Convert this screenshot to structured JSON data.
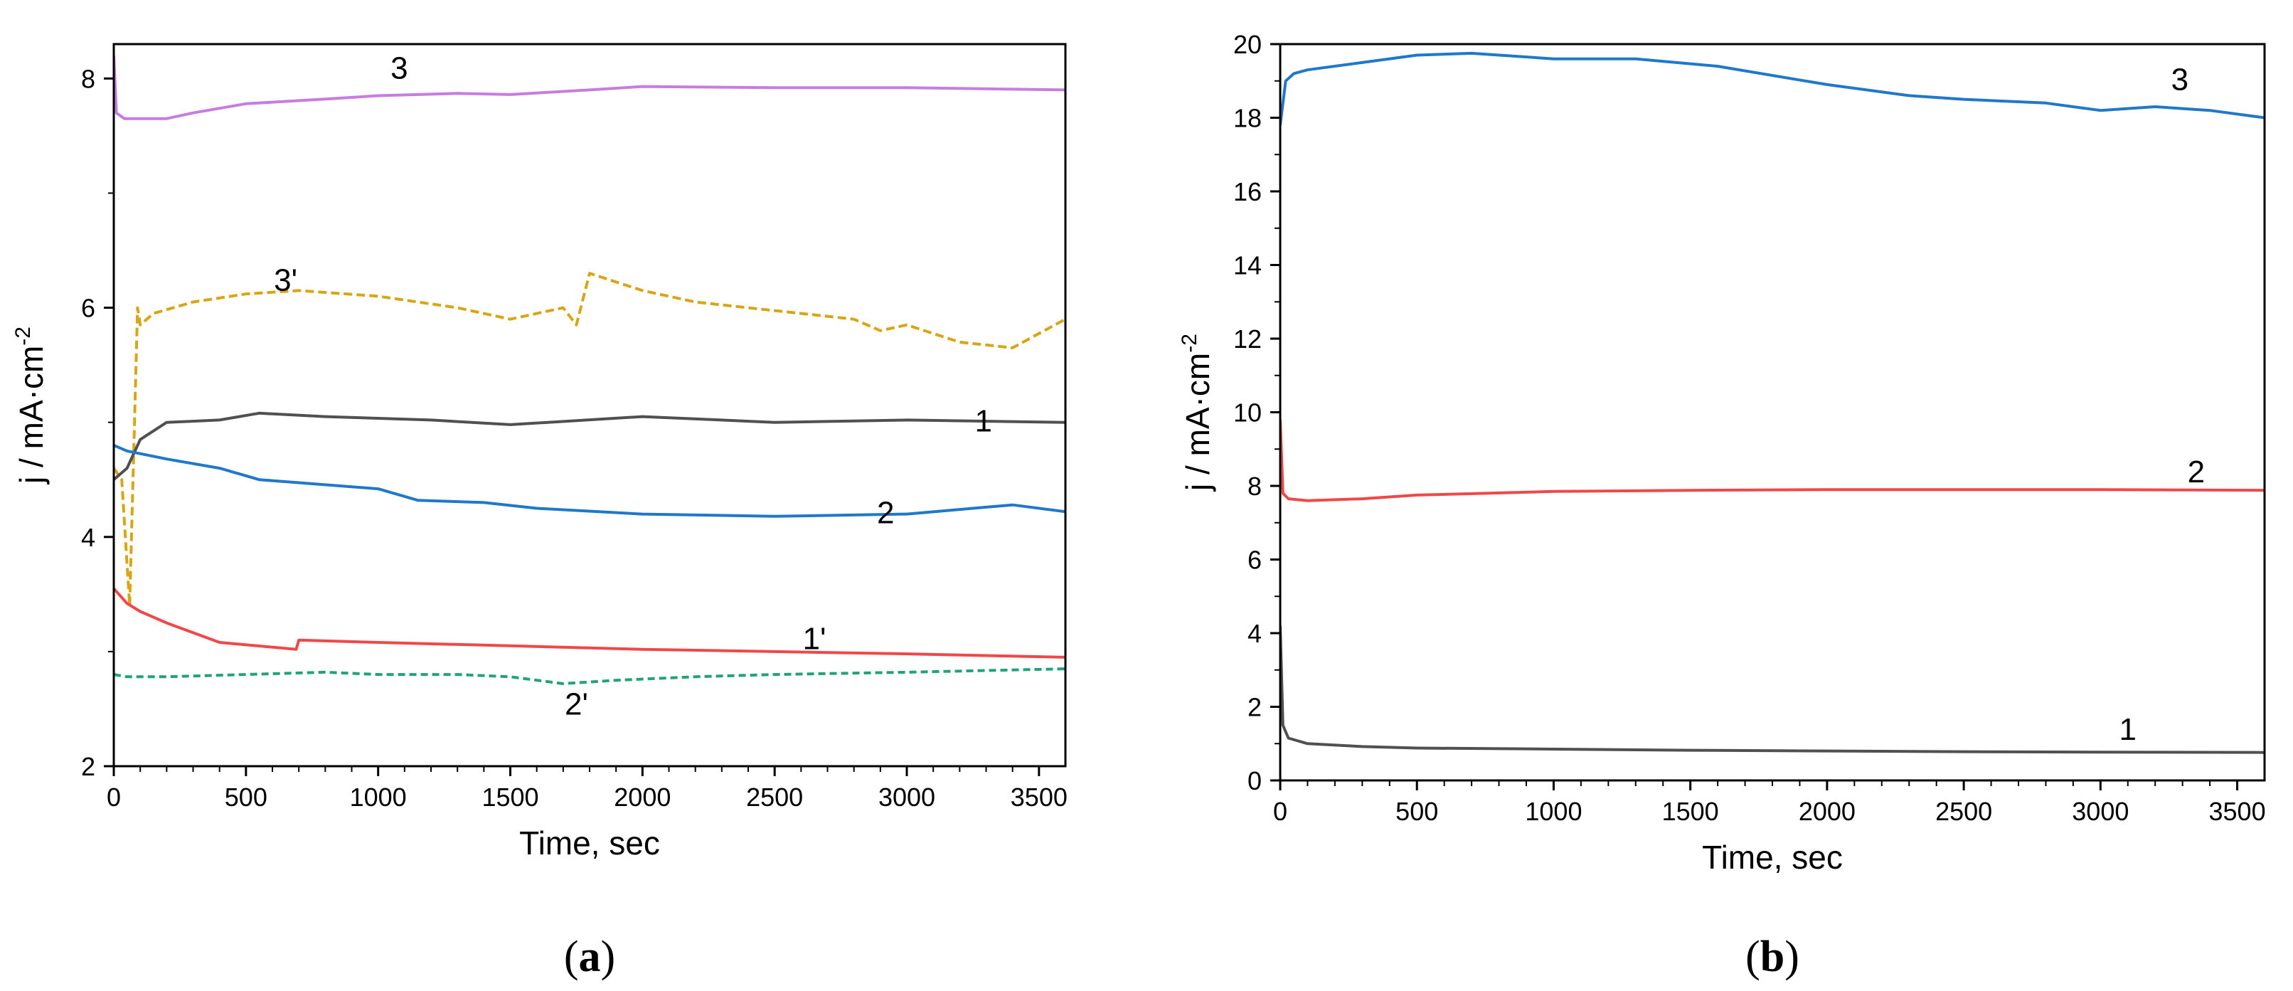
{
  "chart_data": [
    {
      "panel": "(a)",
      "panel_letter": "a",
      "type": "line",
      "xlabel": "Time, sec",
      "ylabel_main": "j / mA·cm",
      "ylabel_sup": "-2",
      "xlim": [
        0,
        3600
      ],
      "ylim": [
        2,
        8.3
      ],
      "xticks": [
        0,
        500,
        1000,
        1500,
        2000,
        2500,
        3000,
        3500
      ],
      "yticks": [
        2,
        4,
        6,
        8
      ],
      "series": [
        {
          "name": "3",
          "color": "#c77de0",
          "dash": "",
          "label": "3",
          "label_at": [
            1080,
            8.0
          ],
          "x": [
            0,
            10,
            40,
            100,
            200,
            300,
            500,
            800,
            1000,
            1300,
            1500,
            1800,
            2000,
            2500,
            3000,
            3600
          ],
          "y": [
            8.2,
            7.7,
            7.65,
            7.65,
            7.65,
            7.7,
            7.78,
            7.82,
            7.85,
            7.87,
            7.86,
            7.9,
            7.93,
            7.92,
            7.92,
            7.9
          ]
        },
        {
          "name": "3'",
          "color": "#d9a514",
          "dash": "12,6",
          "label": "3'",
          "label_at": [
            650,
            6.15
          ],
          "x": [
            0,
            30,
            60,
            90,
            100,
            150,
            300,
            500,
            700,
            1000,
            1300,
            1500,
            1700,
            1750,
            1800,
            2000,
            2200,
            2400,
            2600,
            2800,
            2900,
            3000,
            3200,
            3400,
            3600
          ],
          "y": [
            4.6,
            4.5,
            3.4,
            6.0,
            5.85,
            5.95,
            6.05,
            6.12,
            6.15,
            6.1,
            6.0,
            5.9,
            6.0,
            5.85,
            6.3,
            6.15,
            6.05,
            6.0,
            5.95,
            5.9,
            5.8,
            5.85,
            5.7,
            5.65,
            5.9
          ]
        },
        {
          "name": "1",
          "color": "#505050",
          "dash": "",
          "label": "1",
          "label_at": [
            3290,
            4.92
          ],
          "x": [
            0,
            50,
            100,
            200,
            400,
            550,
            800,
            1200,
            1500,
            2000,
            2500,
            3000,
            3600
          ],
          "y": [
            4.5,
            4.6,
            4.85,
            5.0,
            5.02,
            5.08,
            5.05,
            5.02,
            4.98,
            5.05,
            5.0,
            5.02,
            5.0
          ]
        },
        {
          "name": "2",
          "color": "#1f78c9",
          "dash": "",
          "label": "2",
          "label_at": [
            2920,
            4.12
          ],
          "x": [
            0,
            50,
            200,
            400,
            550,
            1000,
            1150,
            1400,
            1600,
            2000,
            2500,
            3000,
            3400,
            3600
          ],
          "y": [
            4.8,
            4.75,
            4.68,
            4.6,
            4.5,
            4.42,
            4.32,
            4.3,
            4.25,
            4.2,
            4.18,
            4.2,
            4.28,
            4.22
          ]
        },
        {
          "name": "1'",
          "color": "#f04848",
          "dash": "",
          "label": "1'",
          "label_at": [
            2650,
            3.02
          ],
          "x": [
            0,
            50,
            100,
            200,
            400,
            690,
            700,
            1000,
            1500,
            2000,
            2500,
            3000,
            3600
          ],
          "y": [
            3.55,
            3.42,
            3.35,
            3.25,
            3.08,
            3.02,
            3.1,
            3.08,
            3.05,
            3.02,
            3.0,
            2.98,
            2.95
          ]
        },
        {
          "name": "2'",
          "color": "#21a37a",
          "dash": "10,6",
          "label": "2'",
          "label_at": [
            1750,
            2.45
          ],
          "x": [
            0,
            50,
            200,
            500,
            800,
            1000,
            1300,
            1500,
            1700,
            1900,
            2200,
            2500,
            3000,
            3600
          ],
          "y": [
            2.8,
            2.78,
            2.78,
            2.8,
            2.82,
            2.8,
            2.8,
            2.78,
            2.72,
            2.75,
            2.78,
            2.8,
            2.82,
            2.85
          ]
        }
      ]
    },
    {
      "panel": "(b)",
      "panel_letter": "b",
      "type": "line",
      "xlabel": "Time, sec",
      "ylabel_main": "j / mA·cm",
      "ylabel_sup": "-2",
      "xlim": [
        0,
        3600
      ],
      "ylim": [
        0,
        20
      ],
      "xticks": [
        0,
        500,
        1000,
        1500,
        2000,
        2500,
        3000,
        3500
      ],
      "yticks": [
        0,
        2,
        4,
        6,
        8,
        10,
        12,
        14,
        16,
        18,
        20
      ],
      "series": [
        {
          "name": "3",
          "color": "#1f78c9",
          "dash": "",
          "label": "3",
          "label_at": [
            3290,
            18.75
          ],
          "x": [
            0,
            20,
            50,
            100,
            300,
            500,
            700,
            1000,
            1300,
            1600,
            2000,
            2300,
            2500,
            2800,
            3000,
            3200,
            3400,
            3600
          ],
          "y": [
            17.8,
            19.0,
            19.2,
            19.3,
            19.5,
            19.7,
            19.75,
            19.6,
            19.6,
            19.4,
            18.9,
            18.6,
            18.5,
            18.4,
            18.2,
            18.3,
            18.2,
            18.0
          ]
        },
        {
          "name": "2",
          "color": "#f04848",
          "dash": "",
          "label": "2",
          "label_at": [
            3350,
            8.1
          ],
          "x": [
            0,
            10,
            30,
            100,
            300,
            500,
            1000,
            1500,
            2000,
            2500,
            3000,
            3600
          ],
          "y": [
            9.8,
            7.8,
            7.65,
            7.6,
            7.65,
            7.75,
            7.85,
            7.88,
            7.9,
            7.9,
            7.9,
            7.88
          ]
        },
        {
          "name": "1",
          "color": "#505050",
          "dash": "",
          "label": "1",
          "label_at": [
            3100,
            1.1
          ],
          "x": [
            0,
            10,
            30,
            100,
            300,
            500,
            1000,
            1500,
            2000,
            2500,
            3000,
            3600
          ],
          "y": [
            4.2,
            1.5,
            1.15,
            1.0,
            0.92,
            0.88,
            0.85,
            0.82,
            0.8,
            0.78,
            0.77,
            0.76
          ]
        }
      ]
    }
  ]
}
